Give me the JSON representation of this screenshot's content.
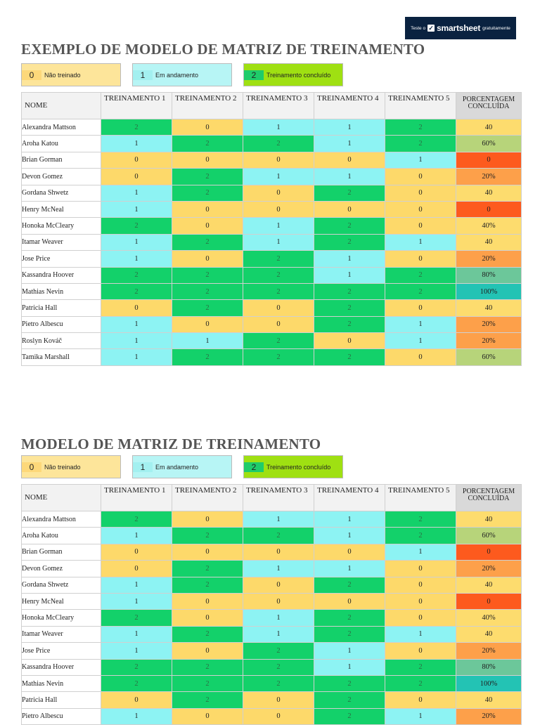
{
  "banner": {
    "pre": "Teste o",
    "brand": "smartsheet",
    "post": "gratuitamente"
  },
  "colors": {
    "s0": "#fdd96a",
    "s1": "#8df3f3",
    "s2": "#13d16a",
    "pct_red": "#fd5a1e",
    "pct_orange": "#fda04a",
    "pct_yellow": "#fddc6e",
    "pct_olive": "#b7d47a",
    "pct_green": "#6cc79a",
    "pct_teal": "#23c3b4"
  },
  "legend": [
    {
      "num": "0",
      "label": "Não treinado"
    },
    {
      "num": "1",
      "label": "Em andamento"
    },
    {
      "num": "2",
      "label": "Treinamento concluído"
    }
  ],
  "headers": {
    "name": "NOME",
    "t1": "TREINAMENTO 1",
    "t2": "TREINAMENTO 2",
    "t3": "TREINAMENTO 3",
    "t4": "TREINAMENTO 4",
    "t5": "TREINAMENTO 5",
    "pct": "PORCENTAGEM CONCLUÍDA"
  },
  "sections": [
    {
      "title": "EXEMPLO DE MODELO DE MATRIZ DE TREINAMENTO",
      "rows": [
        {
          "name": "Alexandra Mattson",
          "t": [
            "2",
            "0",
            "1",
            "1",
            "2"
          ],
          "pct": "40",
          "pc": "yellow"
        },
        {
          "name": "Aroha Katou",
          "t": [
            "1",
            "2",
            "2",
            "1",
            "2"
          ],
          "pct": "60%",
          "pc": "olive"
        },
        {
          "name": "Brian Gorman",
          "t": [
            "0",
            "0",
            "0",
            "0",
            "1"
          ],
          "pct": "0",
          "pc": "red"
        },
        {
          "name": "Devon Gomez",
          "t": [
            "0",
            "2",
            "1",
            "1",
            "0"
          ],
          "pct": "20%",
          "pc": "orange"
        },
        {
          "name": "Gordana Shwetz",
          "t": [
            "1",
            "2",
            "0",
            "2",
            "0"
          ],
          "pct": "40",
          "pc": "yellow"
        },
        {
          "name": "Henry McNeal",
          "t": [
            "1",
            "0",
            "0",
            "0",
            "0"
          ],
          "pct": "0",
          "pc": "red"
        },
        {
          "name": "Honoka McCleary",
          "t": [
            "2",
            "0",
            "1",
            "2",
            "0"
          ],
          "pct": "40%",
          "pc": "yellow"
        },
        {
          "name": "Itamar Weaver",
          "t": [
            "1",
            "2",
            "1",
            "2",
            "1"
          ],
          "pct": "40",
          "pc": "yellow"
        },
        {
          "name": "Jose Price",
          "t": [
            "1",
            "0",
            "2",
            "1",
            "0"
          ],
          "pct": "20%",
          "pc": "orange"
        },
        {
          "name": "Kassandra Hoover",
          "t": [
            "2",
            "2",
            "2",
            "1",
            "2"
          ],
          "pct": "80%",
          "pc": "green"
        },
        {
          "name": "Mathias Nevin",
          "t": [
            "2",
            "2",
            "2",
            "2",
            "2"
          ],
          "pct": "100%",
          "pc": "teal"
        },
        {
          "name": "Patricia Hall",
          "t": [
            "0",
            "2",
            "0",
            "2",
            "0"
          ],
          "pct": "40",
          "pc": "yellow"
        },
        {
          "name": "Pietro Albescu",
          "t": [
            "1",
            "0",
            "0",
            "2",
            "1"
          ],
          "pct": "20%",
          "pc": "orange"
        },
        {
          "name": "Roslyn Kováč",
          "t": [
            "1",
            "1",
            "2",
            "0",
            "1"
          ],
          "pct": "20%",
          "pc": "orange"
        },
        {
          "name": "Tamika Marshall",
          "t": [
            "1",
            "2",
            "2",
            "2",
            "0"
          ],
          "pct": "60%",
          "pc": "olive"
        }
      ]
    },
    {
      "title": "MODELO DE MATRIZ DE TREINAMENTO",
      "rows": [
        {
          "name": "Alexandra Mattson",
          "t": [
            "2",
            "0",
            "1",
            "1",
            "2"
          ],
          "pct": "40",
          "pc": "yellow"
        },
        {
          "name": "Aroha Katou",
          "t": [
            "1",
            "2",
            "2",
            "1",
            "2"
          ],
          "pct": "60%",
          "pc": "olive"
        },
        {
          "name": "Brian Gorman",
          "t": [
            "0",
            "0",
            "0",
            "0",
            "1"
          ],
          "pct": "0",
          "pc": "red"
        },
        {
          "name": "Devon Gomez",
          "t": [
            "0",
            "2",
            "1",
            "1",
            "0"
          ],
          "pct": "20%",
          "pc": "orange"
        },
        {
          "name": "Gordana Shwetz",
          "t": [
            "1",
            "2",
            "0",
            "2",
            "0"
          ],
          "pct": "40",
          "pc": "yellow"
        },
        {
          "name": "Henry McNeal",
          "t": [
            "1",
            "0",
            "0",
            "0",
            "0"
          ],
          "pct": "0",
          "pc": "red"
        },
        {
          "name": "Honoka McCleary",
          "t": [
            "2",
            "0",
            "1",
            "2",
            "0"
          ],
          "pct": "40%",
          "pc": "yellow"
        },
        {
          "name": "Itamar Weaver",
          "t": [
            "1",
            "2",
            "1",
            "2",
            "1"
          ],
          "pct": "40",
          "pc": "yellow"
        },
        {
          "name": "Jose Price",
          "t": [
            "1",
            "0",
            "2",
            "1",
            "0"
          ],
          "pct": "20%",
          "pc": "orange"
        },
        {
          "name": "Kassandra Hoover",
          "t": [
            "2",
            "2",
            "2",
            "1",
            "2"
          ],
          "pct": "80%",
          "pc": "green"
        },
        {
          "name": "Mathias Nevin",
          "t": [
            "2",
            "2",
            "2",
            "2",
            "2"
          ],
          "pct": "100%",
          "pc": "teal"
        },
        {
          "name": "Patricia Hall",
          "t": [
            "0",
            "2",
            "0",
            "2",
            "0"
          ],
          "pct": "40",
          "pc": "yellow"
        },
        {
          "name": "Pietro Albescu",
          "t": [
            "1",
            "0",
            "0",
            "2",
            "1"
          ],
          "pct": "20%",
          "pc": "orange"
        }
      ]
    }
  ]
}
